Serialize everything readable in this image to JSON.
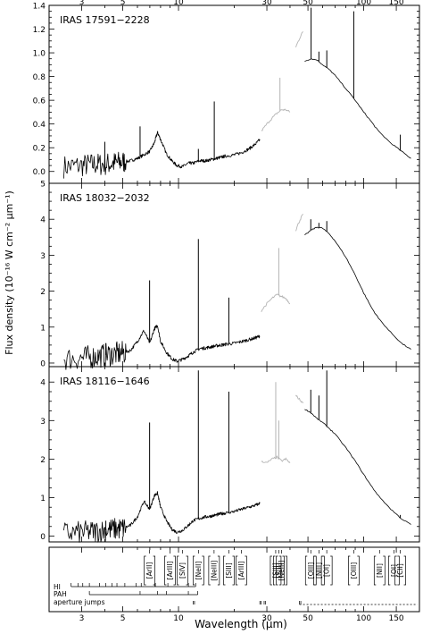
{
  "chart_data": {
    "type": "line",
    "xlabel": "Wavelength (μm)",
    "ylabel": "Flux density (10⁻¹⁶ W cm⁻² μm⁻¹)",
    "xscale": "log",
    "xlim": [
      2.0,
      200
    ],
    "xticks": [
      3,
      5,
      10,
      30,
      50,
      100,
      150
    ],
    "xtick_labels": [
      "3",
      "5",
      "10",
      "30",
      "50",
      "100",
      "150"
    ],
    "grid": false,
    "panels": [
      {
        "title": "IRAS 17591−2228",
        "ylim": [
          -0.1,
          1.4
        ],
        "yticks": [
          0.0,
          0.2,
          0.4,
          0.6,
          0.8,
          1.0,
          1.2,
          1.4
        ],
        "ytick_labels": [
          "0.0",
          "0.2",
          "0.4",
          "0.6",
          "0.8",
          "1.0",
          "1.2",
          "1.4"
        ],
        "series": [
          {
            "segment": "SWS",
            "color": "#000000",
            "x": [
              2.4,
              3.0,
              3.5,
              4.0,
              4.5,
              5.0,
              5.5,
              6.0,
              6.5,
              7.0,
              7.4,
              7.7,
              8.0,
              8.6,
              9.2,
              9.8,
              10.5,
              11.3,
              12.0,
              13.0,
              14.0,
              15.0,
              16.0,
              17.0,
              18.0,
              20.0,
              22.0,
              24.0,
              26.0,
              27.5
            ],
            "y": [
              0.04,
              0.05,
              0.06,
              0.06,
              0.07,
              0.08,
              0.09,
              0.11,
              0.14,
              0.17,
              0.24,
              0.33,
              0.27,
              0.15,
              0.09,
              0.05,
              0.04,
              0.07,
              0.07,
              0.09,
              0.09,
              0.1,
              0.11,
              0.12,
              0.13,
              0.14,
              0.16,
              0.19,
              0.23,
              0.27
            ]
          },
          {
            "segment": "SWS grey",
            "color": "#b4b4b4",
            "x": [
              28,
              30,
              32,
              34,
              36,
              38,
              40
            ],
            "y": [
              0.34,
              0.4,
              0.45,
              0.49,
              0.52,
              0.52,
              0.5
            ]
          },
          {
            "segment": "LWS grey",
            "color": "#b4b4b4",
            "x": [
              43,
              45,
              47
            ],
            "y": [
              1.05,
              1.12,
              1.18
            ]
          },
          {
            "segment": "LWS",
            "color": "#000000",
            "x": [
              48,
              52,
              56,
              60,
              65,
              70,
              80,
              90,
              100,
              110,
              120,
              140,
              160,
              180
            ],
            "y": [
              0.93,
              0.95,
              0.94,
              0.9,
              0.86,
              0.81,
              0.7,
              0.6,
              0.5,
              0.42,
              0.34,
              0.24,
              0.17,
              0.11
            ]
          }
        ],
        "lines": [
          {
            "x": 4.0,
            "peak": 0.25
          },
          {
            "x": 6.2,
            "peak": 0.38
          },
          {
            "x": 12.8,
            "peak": 0.19
          },
          {
            "x": 15.6,
            "peak": 0.59
          },
          {
            "x": 35.3,
            "peak": 0.79
          },
          {
            "x": 52.0,
            "peak": 1.38
          },
          {
            "x": 57.3,
            "peak": 1.01
          },
          {
            "x": 63.2,
            "peak": 1.02
          },
          {
            "x": 88.4,
            "peak": 1.35
          },
          {
            "x": 157.7,
            "peak": 0.31
          }
        ]
      },
      {
        "title": "IRAS 18032−2032",
        "ylim": [
          -0.1,
          5.0
        ],
        "yticks": [
          0,
          1,
          2,
          3,
          4,
          5
        ],
        "ytick_labels": [
          "0",
          "1",
          "2",
          "3",
          "4",
          "5"
        ],
        "series": [
          {
            "segment": "SWS",
            "color": "#000000",
            "x": [
              2.4,
              3.0,
              3.5,
              4.0,
              4.5,
              5.0,
              5.5,
              6.0,
              6.5,
              7.0,
              7.4,
              7.7,
              8.0,
              8.6,
              9.2,
              9.8,
              10.5,
              11.3,
              12.0,
              13.0,
              14.0,
              15.0,
              16.0,
              17.0,
              18.0,
              20.0,
              22.0,
              24.0,
              26.0,
              27.5
            ],
            "y": [
              0.12,
              0.14,
              0.18,
              0.22,
              0.25,
              0.28,
              0.35,
              0.6,
              0.9,
              0.55,
              0.95,
              1.05,
              0.6,
              0.3,
              0.12,
              0.05,
              0.1,
              0.2,
              0.3,
              0.4,
              0.42,
              0.45,
              0.48,
              0.5,
              0.52,
              0.55,
              0.6,
              0.65,
              0.7,
              0.75
            ]
          },
          {
            "segment": "SWS grey",
            "color": "#b4b4b4",
            "x": [
              28,
              30,
              32,
              34,
              36,
              38,
              40
            ],
            "y": [
              1.45,
              1.65,
              1.8,
              1.9,
              1.85,
              1.8,
              1.65
            ]
          },
          {
            "segment": "LWS grey",
            "color": "#b4b4b4",
            "x": [
              43,
              45,
              47
            ],
            "y": [
              3.7,
              3.95,
              4.15
            ]
          },
          {
            "segment": "LWS",
            "color": "#000000",
            "x": [
              48,
              52,
              56,
              60,
              65,
              70,
              80,
              90,
              100,
              110,
              120,
              140,
              160,
              180
            ],
            "y": [
              3.55,
              3.7,
              3.78,
              3.75,
              3.6,
              3.4,
              2.95,
              2.45,
              1.95,
              1.55,
              1.25,
              0.85,
              0.55,
              0.38
            ]
          }
        ],
        "lines": [
          {
            "x": 4.05,
            "peak": 0.55
          },
          {
            "x": 6.98,
            "peak": 2.3
          },
          {
            "x": 12.8,
            "peak": 3.45
          },
          {
            "x": 18.7,
            "peak": 1.82
          },
          {
            "x": 34.8,
            "peak": 3.2
          },
          {
            "x": 51.8,
            "peak": 4.0
          },
          {
            "x": 57.3,
            "peak": 3.9
          },
          {
            "x": 63.2,
            "peak": 3.95
          }
        ]
      },
      {
        "title": "IRAS 18116−1646",
        "ylim": [
          -0.15,
          4.4
        ],
        "yticks": [
          0,
          1,
          2,
          3,
          4
        ],
        "ytick_labels": [
          "0",
          "1",
          "2",
          "3",
          "4"
        ],
        "series": [
          {
            "segment": "SWS",
            "color": "#000000",
            "x": [
              2.4,
              3.0,
              3.5,
              4.0,
              4.5,
              5.0,
              5.5,
              6.0,
              6.5,
              7.0,
              7.4,
              7.7,
              8.0,
              8.6,
              9.2,
              9.8,
              10.5,
              11.3,
              12.0,
              13.0,
              14.0,
              15.0,
              16.0,
              17.0,
              18.0,
              20.0,
              22.0,
              24.0,
              26.0,
              27.5
            ],
            "y": [
              0.08,
              0.1,
              0.12,
              0.15,
              0.18,
              0.2,
              0.28,
              0.5,
              0.9,
              0.7,
              1.05,
              1.12,
              0.75,
              0.4,
              0.18,
              0.1,
              0.15,
              0.28,
              0.4,
              0.46,
              0.5,
              0.52,
              0.55,
              0.58,
              0.6,
              0.64,
              0.7,
              0.75,
              0.8,
              0.85
            ]
          },
          {
            "segment": "SWS grey",
            "color": "#b4b4b4",
            "x": [
              28,
              30,
              32,
              34,
              36,
              38,
              40
            ],
            "y": [
              1.95,
              1.9,
              2.0,
              2.05,
              1.95,
              2.0,
              1.9
            ]
          },
          {
            "segment": "LWS grey",
            "color": "#b4b4b4",
            "x": [
              43,
              45,
              47
            ],
            "y": [
              3.65,
              3.55,
              3.45
            ]
          },
          {
            "segment": "LWS",
            "color": "#000000",
            "x": [
              48,
              52,
              56,
              60,
              65,
              70,
              80,
              90,
              100,
              110,
              120,
              140,
              160,
              180
            ],
            "y": [
              3.3,
              3.2,
              3.05,
              2.95,
              2.8,
              2.65,
              2.3,
              1.95,
              1.6,
              1.3,
              1.05,
              0.7,
              0.45,
              0.3
            ]
          }
        ],
        "lines": [
          {
            "x": 4.05,
            "peak": 0.4
          },
          {
            "x": 6.98,
            "peak": 2.95
          },
          {
            "x": 12.8,
            "peak": 4.3
          },
          {
            "x": 18.7,
            "peak": 3.75
          },
          {
            "x": 33.5,
            "peak": 4.0
          },
          {
            "x": 34.8,
            "peak": 3.0
          },
          {
            "x": 51.8,
            "peak": 3.8
          },
          {
            "x": 57.3,
            "peak": 3.65
          },
          {
            "x": 63.2,
            "peak": 4.3
          },
          {
            "x": 157.7,
            "peak": 0.55
          }
        ]
      }
    ],
    "line_id_panel": {
      "ions": [
        {
          "label": "[ArII]",
          "x": 6.98
        },
        {
          "label": "[ArIII]",
          "x": 8.99
        },
        {
          "label": "[SIV]",
          "x": 10.51
        },
        {
          "label": "[NeII]",
          "x": 12.81
        },
        {
          "label": "[NeIII]",
          "x": 15.56
        },
        {
          "label": "[SIII]",
          "x": 18.71
        },
        {
          "label": "[ArIII]",
          "x": 21.83
        },
        {
          "label": "[SIII]",
          "x": 33.48
        },
        {
          "label": "[SiII]",
          "x": 34.81
        },
        {
          "label": "[NeIII]",
          "x": 36.01
        },
        {
          "label": "[OIII]",
          "x": 51.81
        },
        {
          "label": "[NIII]",
          "x": 57.32
        },
        {
          "label": "[OI]",
          "x": 63.18
        },
        {
          "label": "[OIII]",
          "x": 88.36
        },
        {
          "label": "[NII]",
          "x": 121.8
        },
        {
          "label": "[OI]",
          "x": 145.5
        },
        {
          "label": "[CII]",
          "x": 157.7
        }
      ],
      "row_labels": [
        "HI",
        "PAH",
        "aperture jumps"
      ],
      "hi_lines": [
        2.63,
        2.87,
        3.04,
        3.3,
        3.74,
        4.05,
        4.37,
        4.65,
        5.13,
        5.91,
        6.29,
        7.46,
        7.5,
        8.76,
        11.31,
        12.37
      ],
      "pah_features": [
        3.3,
        6.2,
        7.7,
        8.6,
        11.3,
        12.7
      ],
      "aperture_jumps": [
        12.0,
        27.5,
        29.0,
        45.0
      ]
    }
  }
}
